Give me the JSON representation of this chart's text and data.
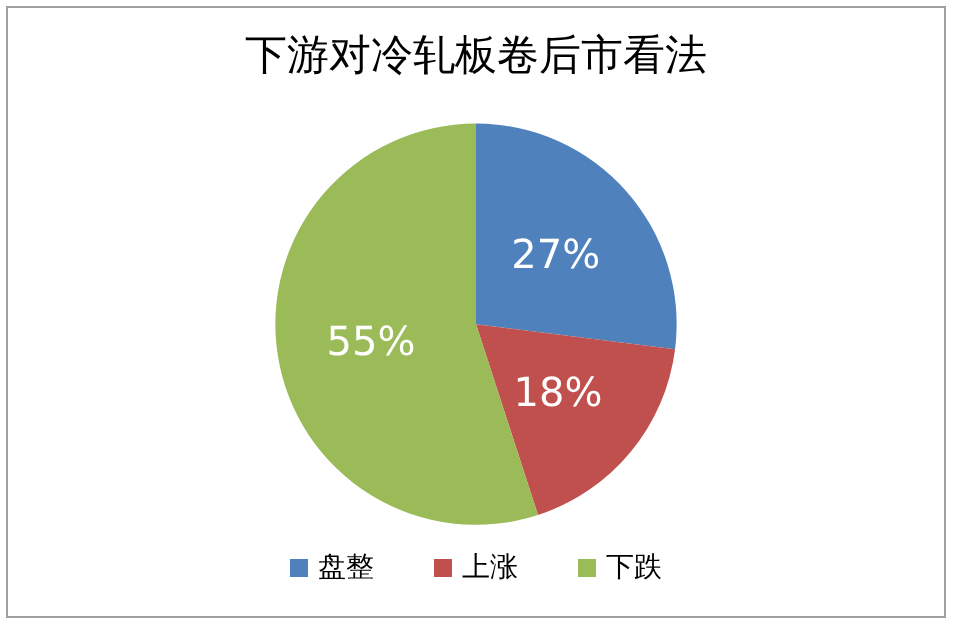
{
  "chart_data": {
    "type": "pie",
    "title": "下游对冷轧板卷后市看法",
    "categories": [
      "盘整",
      "上涨",
      "下跌"
    ],
    "values": [
      27,
      18,
      55
    ],
    "value_labels": [
      "27%",
      "18%",
      "55%"
    ],
    "colors": [
      "#4f81bd",
      "#c0504d",
      "#9bbb59"
    ],
    "legend": "bottom"
  }
}
